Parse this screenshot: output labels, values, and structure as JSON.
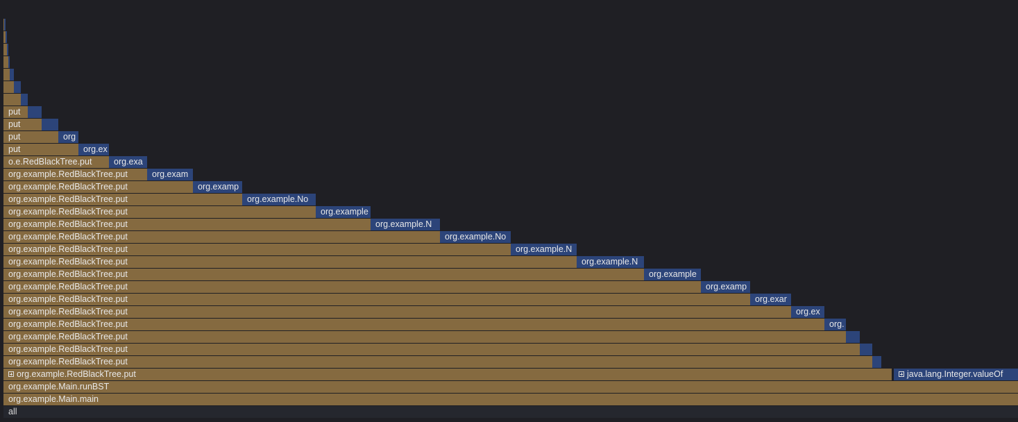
{
  "root_label": "all",
  "main_label": "org.example.Main.main",
  "runbst_label": "org.example.Main.runBST",
  "put_full": "org.example.RedBlackTree.put",
  "put_mid": "o.e.RedBlackTree.put",
  "put_short": "put",
  "integer_valueof": "java.lang.Integer.valueOf",
  "node_labels": [
    "org.example.No",
    "org.example",
    "org.example.N",
    "org.example.No",
    "org.example.N",
    "org.example.N",
    "org.example",
    "org.examp",
    "org.exar",
    "org.ex",
    "org.",
    "org.examp",
    "org.exam",
    "org.exa",
    "org.ex",
    "org"
  ],
  "colors": {
    "app_frame": "#856a40",
    "lib_frame": "#2c4479",
    "background": "#1f1f24"
  }
}
